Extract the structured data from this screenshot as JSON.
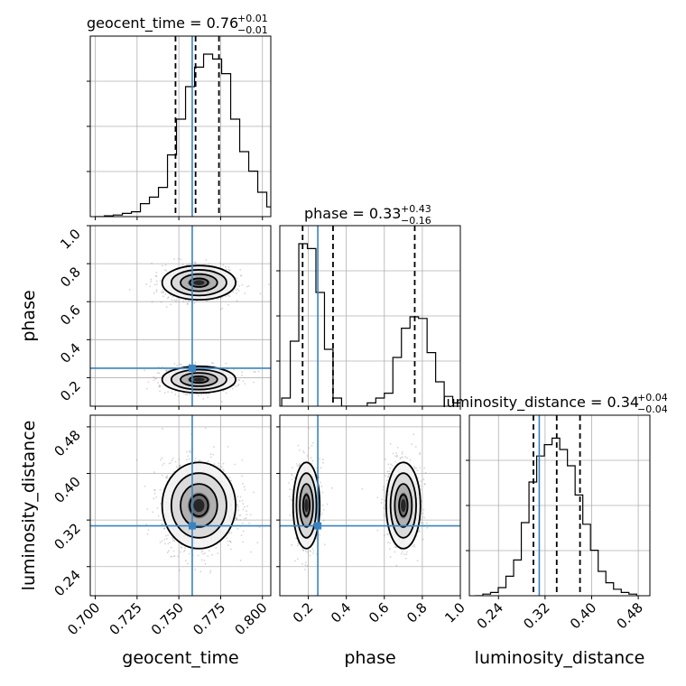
{
  "chart_data": {
    "type": "corner",
    "parameters": [
      "geocent_time",
      "phase",
      "luminosity_distance"
    ],
    "truths": {
      "geocent_time": 0.758,
      "phase": 0.25,
      "luminosity_distance": 0.31
    },
    "ranges": {
      "geocent_time": [
        0.697,
        0.805
      ],
      "phase": [
        0.05,
        1.0
      ],
      "luminosity_distance": [
        0.19,
        0.5
      ]
    },
    "ticks": {
      "geocent_time": [
        "0.700",
        "0.725",
        "0.750",
        "0.775",
        "0.800"
      ],
      "phase": [
        "0.2",
        "0.4",
        "0.6",
        "0.8",
        "1.0"
      ],
      "luminosity_distance": [
        "0.24",
        "0.32",
        "0.40",
        "0.48"
      ]
    },
    "titles": [
      {
        "name": "geocent_time",
        "label": "geocent_time = 0.76",
        "upper": "+0.01",
        "lower": "−0.01",
        "median": 0.76,
        "q_low": 0.748,
        "q_high": 0.774
      },
      {
        "name": "phase",
        "label": "phase = 0.33",
        "upper": "+0.43",
        "lower": "−0.16",
        "median": 0.33,
        "q_low": 0.17,
        "q_high": 0.76
      },
      {
        "name": "luminosity_distance",
        "label": "luminosity_distance = 0.34",
        "upper": "+0.04",
        "lower": "−0.04",
        "median": 0.34,
        "q_low": 0.3,
        "q_high": 0.38
      }
    ],
    "histograms": {
      "geocent_time": {
        "edges_start": 0.7,
        "bin_width": 0.0054,
        "counts": [
          0.0,
          0.005,
          0.01,
          0.02,
          0.03,
          0.08,
          0.12,
          0.18,
          0.38,
          0.6,
          0.8,
          0.92,
          1.0,
          0.97,
          0.88,
          0.6,
          0.4,
          0.28,
          0.15,
          0.06,
          0.03
        ]
      },
      "phase": {
        "edges_start": 0.06,
        "bin_width": 0.045,
        "counts": [
          0.05,
          0.4,
          1.0,
          0.97,
          0.7,
          0.35,
          0.05,
          0.0,
          0.0,
          0.0,
          0.02,
          0.05,
          0.08,
          0.3,
          0.48,
          0.55,
          0.54,
          0.33,
          0.15,
          0.06,
          0.02
        ]
      },
      "luminosity_distance": {
        "edges_start": 0.2,
        "bin_width": 0.0132,
        "counts": [
          0.0,
          0.01,
          0.02,
          0.05,
          0.12,
          0.22,
          0.45,
          0.7,
          0.86,
          0.93,
          0.97,
          0.9,
          0.8,
          0.62,
          0.44,
          0.28,
          0.15,
          0.08,
          0.04,
          0.02,
          0.01
        ]
      }
    },
    "modes": {
      "phase": [
        {
          "center": 0.7,
          "spread": 0.045,
          "weight": 0.55
        },
        {
          "center": 0.19,
          "spread": 0.035,
          "weight": 0.45
        }
      ]
    },
    "spreads": {
      "geocent_time": 0.011,
      "luminosity_distance": 0.037
    },
    "grid": true
  }
}
